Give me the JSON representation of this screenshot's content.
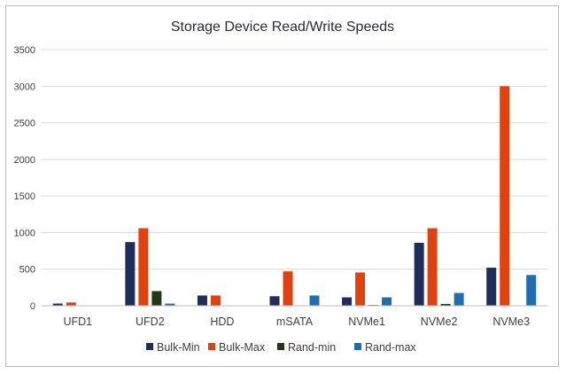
{
  "chart_data": {
    "type": "bar",
    "title": "Storage Device Read/Write Speeds",
    "xlabel": "",
    "ylabel": "",
    "ylim": [
      0,
      3500
    ],
    "yticks": [
      0,
      500,
      1000,
      1500,
      2000,
      2500,
      3000,
      3500
    ],
    "grid": true,
    "legend_position": "bottom",
    "categories": [
      "UFD1",
      "UFD2",
      "HDD",
      "mSATA",
      "NVMe1",
      "NVMe2",
      "NVMe3"
    ],
    "series": [
      {
        "name": "Bulk-Min",
        "color": "#1f2d5a",
        "values": [
          30,
          870,
          140,
          130,
          115,
          860,
          520
        ]
      },
      {
        "name": "Bulk-Max",
        "color": "#e0420f",
        "values": [
          45,
          1060,
          140,
          470,
          455,
          1060,
          3000
        ]
      },
      {
        "name": "Rand-min",
        "color": "#1d3a12",
        "values": [
          0,
          200,
          0,
          0,
          10,
          25,
          0
        ]
      },
      {
        "name": "Rand-max",
        "color": "#1f6fb0",
        "values": [
          0,
          30,
          0,
          140,
          115,
          175,
          420
        ]
      }
    ]
  }
}
